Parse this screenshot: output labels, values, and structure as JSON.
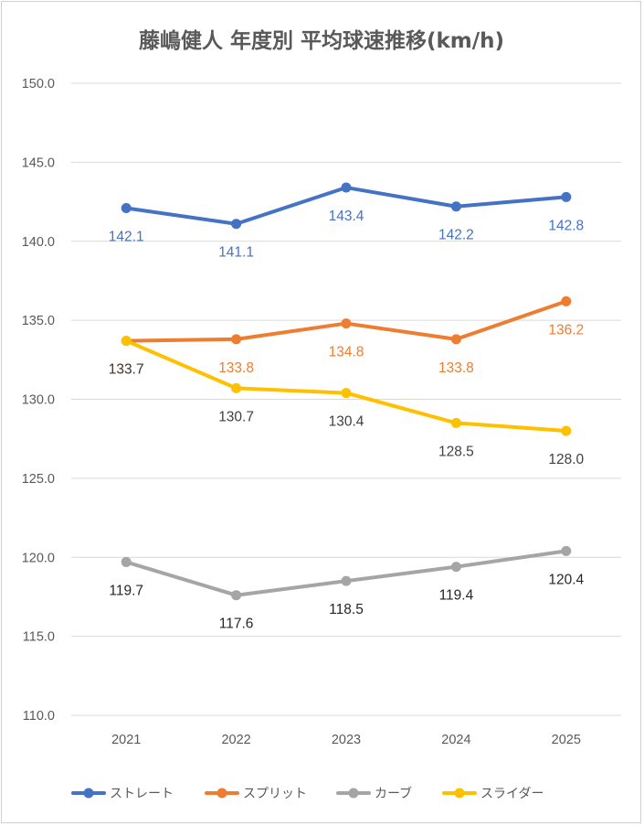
{
  "chart_data": {
    "type": "line",
    "title": "藤嶋健人 年度別 平均球速推移(km/h)",
    "categories": [
      "2021",
      "2022",
      "2023",
      "2024",
      "2025"
    ],
    "ylim": [
      110,
      150
    ],
    "yticks": [
      "150.0",
      "145.0",
      "140.0",
      "135.0",
      "130.0",
      "125.0",
      "120.0",
      "115.0",
      "110.0"
    ],
    "grid": "horizontal",
    "legend_position": "bottom",
    "series": [
      {
        "name": "ストレート",
        "color": "#4472C4",
        "label_color": "#4472C4",
        "label_position": "below",
        "values": [
          142.1,
          141.1,
          143.4,
          142.2,
          142.8
        ],
        "labels": [
          "142.1",
          "141.1",
          "143.4",
          "142.2",
          "142.8"
        ]
      },
      {
        "name": "スプリット",
        "color": "#ED7D31",
        "label_color": "#ED7D31",
        "label_position": "below",
        "values": [
          133.7,
          133.8,
          134.8,
          133.8,
          136.2
        ],
        "labels": [
          "133.7",
          "133.8",
          "134.8",
          "133.8",
          "136.2"
        ]
      },
      {
        "name": "カーブ",
        "color": "#A5A5A5",
        "label_color": "#262626",
        "label_position": "below",
        "values": [
          119.7,
          117.6,
          118.5,
          119.4,
          120.4
        ],
        "labels": [
          "119.7",
          "117.6",
          "118.5",
          "119.4",
          "120.4"
        ]
      },
      {
        "name": "スライダー",
        "color": "#FFC000",
        "label_color": "#404040",
        "label_position": "below",
        "values": [
          133.7,
          130.7,
          130.4,
          128.5,
          128.0
        ],
        "labels": [
          "133.7",
          "130.7",
          "130.4",
          "128.5",
          "128.0"
        ]
      }
    ]
  }
}
